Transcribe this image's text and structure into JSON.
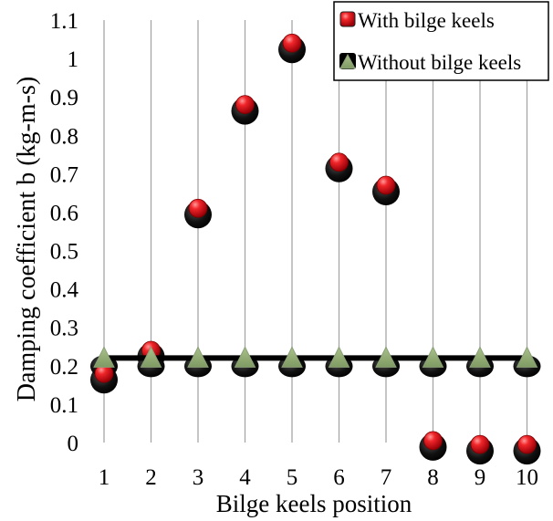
{
  "chart_data": {
    "type": "scatter",
    "title": "",
    "xlabel": "Bilge keels position",
    "ylabel": "Damping coefficient b (kg-m-s)",
    "categories": [
      "1",
      "2",
      "3",
      "4",
      "5",
      "6",
      "7",
      "8",
      "9",
      "10"
    ],
    "ylim": [
      0,
      1.1
    ],
    "yticks": [
      "0",
      "0.1",
      "0.2",
      "0.3",
      "0.4",
      "0.5",
      "0.6",
      "0.7",
      "0.8",
      "0.9",
      "1",
      "1.1"
    ],
    "grid": "vertical",
    "legend_position": "top-right",
    "series": [
      {
        "name": "With bilge keels",
        "marker": "circle",
        "color": "#e8141c",
        "values": [
          0.18,
          0.24,
          0.61,
          0.88,
          1.04,
          0.73,
          0.67,
          0.005,
          -0.005,
          -0.005
        ]
      },
      {
        "name": "Without bilge keels",
        "marker": "triangle",
        "color": "#8fae6c",
        "line": true,
        "values": [
          0.22,
          0.22,
          0.22,
          0.22,
          0.22,
          0.22,
          0.22,
          0.22,
          0.22,
          0.22
        ]
      }
    ]
  },
  "legend": {
    "items": [
      "With bilge keels",
      "Without bilge keels"
    ]
  }
}
